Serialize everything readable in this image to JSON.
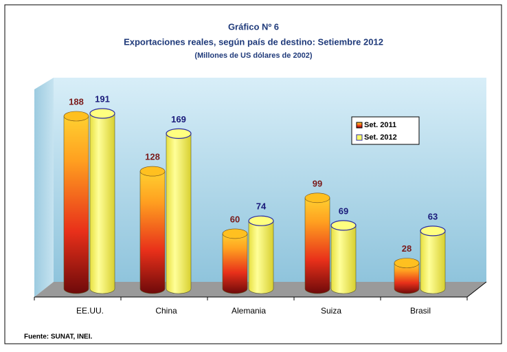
{
  "chart_data": {
    "type": "bar3d",
    "title": "Gráfico Nº 6",
    "subtitle": "Exportaciones  reales,  según país de destino:  Setiembre  2012",
    "unit_note": "(Millones de US dólares de 2002)",
    "categories": [
      "EE.UU.",
      "China",
      "Alemania",
      "Suiza",
      "Brasil"
    ],
    "series": [
      {
        "name": "Set. 2011",
        "color": "#e8501a",
        "values": [
          188,
          128,
          60,
          99,
          28
        ]
      },
      {
        "name": "Set. 2012",
        "color": "#ffff66",
        "values": [
          191,
          169,
          74,
          69,
          63
        ]
      }
    ],
    "source": "Fuente: SUNAT, INEI."
  }
}
